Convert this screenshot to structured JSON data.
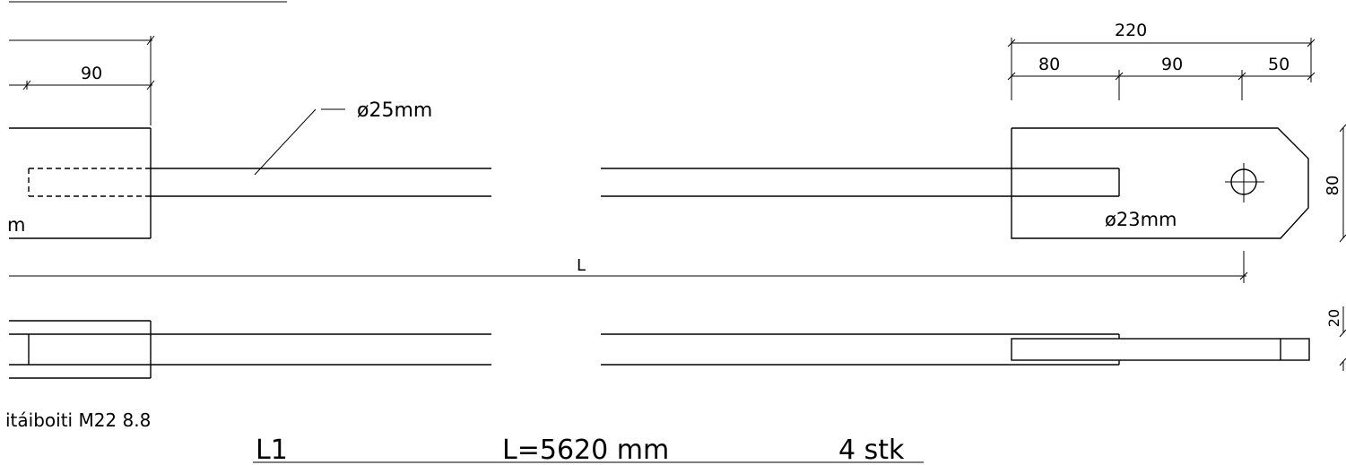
{
  "drawing": {
    "dim_top_total": "220",
    "dim_80": "80",
    "dim_90_right": "90",
    "dim_50": "50",
    "dim_90_left": "90",
    "dim_height_80": "80",
    "dim_20": "20",
    "dim_L": "L",
    "label_rod_diameter": "ø25mm",
    "label_hole_diameter": "ø23mm",
    "label_left_m": "m",
    "label_bolt": "itáiboiti M22 8.8",
    "title_mark": "L1",
    "title_length": "L=5620 mm",
    "title_quantity": "4 stk"
  }
}
